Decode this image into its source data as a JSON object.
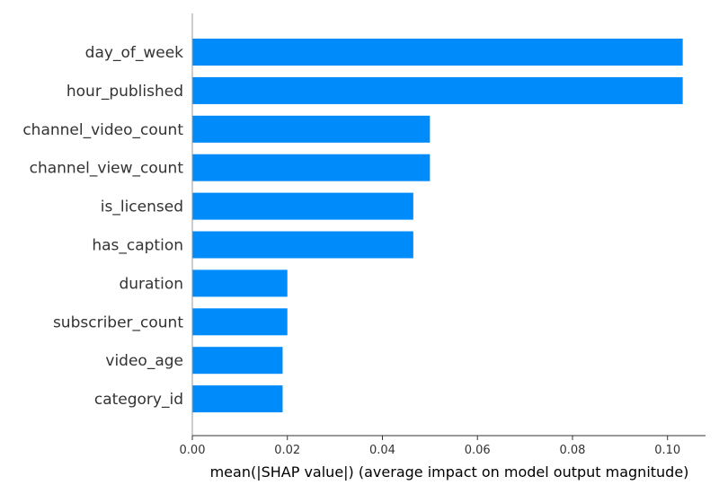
{
  "chart_data": {
    "type": "bar",
    "orientation": "horizontal",
    "categories": [
      "day_of_week",
      "hour_published",
      "channel_video_count",
      "channel_view_count",
      "is_licensed",
      "has_caption",
      "duration",
      "subscriber_count",
      "video_age",
      "category_id"
    ],
    "values": [
      0.1032,
      0.1032,
      0.05,
      0.05,
      0.0465,
      0.0465,
      0.02,
      0.02,
      0.019,
      0.019
    ],
    "title": "",
    "xlabel": "mean(|SHAP value|) (average impact on model output magnitude)",
    "ylabel": "",
    "xlim": [
      0,
      0.108
    ],
    "xticks": [
      0.0,
      0.02,
      0.04,
      0.06,
      0.08,
      0.1
    ],
    "xtick_labels": [
      "0.00",
      "0.02",
      "0.04",
      "0.06",
      "0.08",
      "0.10"
    ],
    "grid": false,
    "bar_color": "#008bfb"
  }
}
